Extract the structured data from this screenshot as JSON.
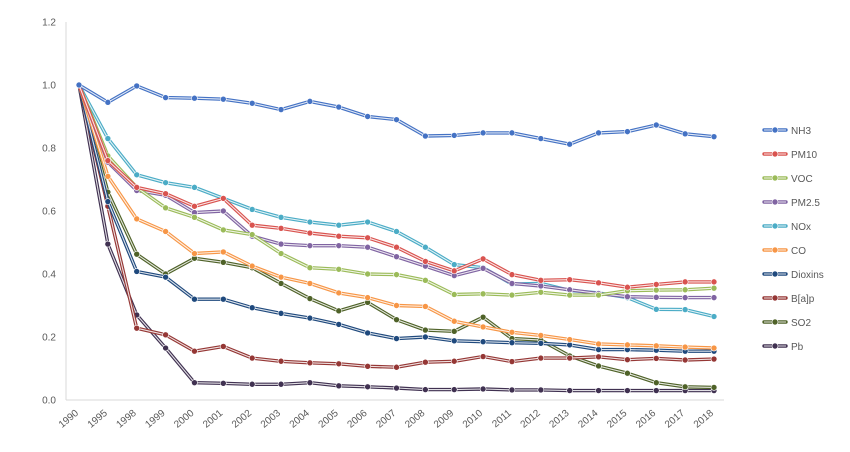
{
  "chart_data": {
    "type": "line",
    "title": "",
    "xlabel": "",
    "ylabel": "",
    "ylim": [
      0,
      1.2
    ],
    "y_ticks": [
      "0.0",
      "0.2",
      "0.4",
      "0.6",
      "0.8",
      "1.0",
      "1.2"
    ],
    "grid": false,
    "legend_position": "right",
    "categories": [
      "1990",
      "1995",
      "1998",
      "1999",
      "2000",
      "2001",
      "2002",
      "2003",
      "2004",
      "2005",
      "2006",
      "2007",
      "2008",
      "2009",
      "2010",
      "2011",
      "2012",
      "2013",
      "2014",
      "2015",
      "2016",
      "2017",
      "2018"
    ],
    "series": [
      {
        "name": "NH3",
        "color": "#4472C4",
        "values": [
          1.0,
          0.945,
          0.997,
          0.96,
          0.958,
          0.955,
          0.942,
          0.922,
          0.948,
          0.93,
          0.9,
          0.89,
          0.838,
          0.84,
          0.848,
          0.848,
          0.83,
          0.812,
          0.848,
          0.852,
          0.873,
          0.845,
          0.836
        ]
      },
      {
        "name": "PM10",
        "color": "#D9534F",
        "values": [
          1.0,
          0.76,
          0.675,
          0.655,
          0.615,
          0.64,
          0.555,
          0.545,
          0.53,
          0.52,
          0.515,
          0.485,
          0.44,
          0.41,
          0.448,
          0.398,
          0.38,
          0.382,
          0.372,
          0.358,
          0.367,
          0.375,
          0.375
        ]
      },
      {
        "name": "VOC",
        "color": "#9BBB59",
        "values": [
          1.0,
          0.775,
          0.675,
          0.61,
          0.58,
          0.54,
          0.525,
          0.465,
          0.42,
          0.415,
          0.4,
          0.398,
          0.38,
          0.335,
          0.337,
          0.333,
          0.342,
          0.333,
          0.333,
          0.347,
          0.349,
          0.35,
          0.355
        ]
      },
      {
        "name": "PM2.5",
        "color": "#8064A2",
        "values": [
          1.0,
          0.755,
          0.665,
          0.65,
          0.595,
          0.6,
          0.52,
          0.495,
          0.49,
          0.49,
          0.485,
          0.455,
          0.425,
          0.395,
          0.418,
          0.37,
          0.362,
          0.35,
          0.338,
          0.328,
          0.326,
          0.325,
          0.325
        ]
      },
      {
        "name": "NOx",
        "color": "#4BACC6",
        "values": [
          1.0,
          0.83,
          0.715,
          0.69,
          0.675,
          0.64,
          0.605,
          0.58,
          0.565,
          0.555,
          0.565,
          0.535,
          0.485,
          0.43,
          0.42,
          0.368,
          0.37,
          0.348,
          0.34,
          0.325,
          0.288,
          0.287,
          0.265
        ]
      },
      {
        "name": "CO",
        "color": "#F79646",
        "values": [
          1.0,
          0.71,
          0.575,
          0.535,
          0.465,
          0.47,
          0.425,
          0.39,
          0.37,
          0.34,
          0.325,
          0.3,
          0.297,
          0.25,
          0.232,
          0.215,
          0.205,
          0.192,
          0.178,
          0.175,
          0.172,
          0.168,
          0.165
        ]
      },
      {
        "name": "Dioxins",
        "color": "#1F497D",
        "values": [
          1.0,
          0.63,
          0.408,
          0.39,
          0.32,
          0.32,
          0.293,
          0.275,
          0.26,
          0.24,
          0.213,
          0.195,
          0.2,
          0.188,
          0.185,
          0.182,
          0.18,
          0.175,
          0.16,
          0.16,
          0.158,
          0.155,
          0.155
        ]
      },
      {
        "name": "B[a]p",
        "color": "#953735",
        "values": [
          1.0,
          0.615,
          0.228,
          0.207,
          0.155,
          0.17,
          0.133,
          0.123,
          0.118,
          0.115,
          0.107,
          0.104,
          0.12,
          0.123,
          0.138,
          0.122,
          0.133,
          0.133,
          0.137,
          0.128,
          0.132,
          0.127,
          0.13
        ]
      },
      {
        "name": "SO2",
        "color": "#4F6228",
        "values": [
          1.0,
          0.66,
          0.463,
          0.4,
          0.45,
          0.437,
          0.42,
          0.37,
          0.322,
          0.283,
          0.31,
          0.255,
          0.222,
          0.218,
          0.263,
          0.195,
          0.19,
          0.14,
          0.108,
          0.085,
          0.055,
          0.042,
          0.04
        ]
      },
      {
        "name": "Pb",
        "color": "#403151",
        "values": [
          1.0,
          0.495,
          0.27,
          0.165,
          0.055,
          0.053,
          0.05,
          0.05,
          0.055,
          0.045,
          0.042,
          0.038,
          0.033,
          0.033,
          0.035,
          0.032,
          0.032,
          0.03,
          0.03,
          0.03,
          0.03,
          0.03,
          0.03
        ]
      }
    ]
  }
}
